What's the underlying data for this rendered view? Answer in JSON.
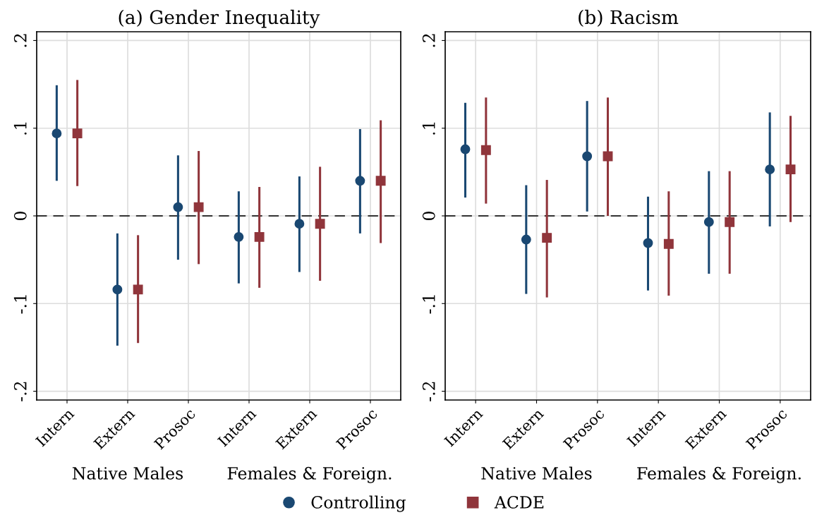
{
  "chart_data": [
    {
      "type": "scatter",
      "title": "(a) Gender Inequality",
      "ylim": [
        -0.21,
        0.21
      ],
      "categories": [
        "Intern",
        "Extern",
        "Prosoc",
        "Intern",
        "Extern",
        "Prosoc"
      ],
      "yticks": [
        {
          "value": -0.2,
          "label": "-.2"
        },
        {
          "value": -0.1,
          "label": "-.1"
        },
        0,
        {
          "value": 0.1,
          "label": ".1"
        },
        {
          "value": 0.2,
          "label": ".2"
        }
      ],
      "grid": true,
      "legend": "bottom",
      "annotations": [
        "Native Males",
        "Females & Foreign."
      ],
      "ref_lines": [
        {
          "axis": "y",
          "value": 0,
          "color": "#333333",
          "line_style": "dashed"
        }
      ],
      "series": [
        {
          "name": "Controlling",
          "color": "#1a4872",
          "marker": "circle",
          "values": [
            0.094,
            -0.084,
            0.01,
            -0.024,
            -0.009,
            0.04
          ],
          "errors": [
            [
              0.04,
              0.149
            ],
            [
              -0.148,
              -0.02
            ],
            [
              -0.05,
              0.069
            ],
            [
              -0.077,
              0.028
            ],
            [
              -0.064,
              0.045
            ],
            [
              -0.02,
              0.099
            ]
          ]
        },
        {
          "name": "ACDE",
          "color": "#90353b",
          "marker": "square",
          "values": [
            0.094,
            -0.084,
            0.01,
            -0.024,
            -0.009,
            0.04
          ],
          "errors": [
            [
              0.034,
              0.155
            ],
            [
              -0.145,
              -0.022
            ],
            [
              -0.055,
              0.074
            ],
            [
              -0.082,
              0.033
            ],
            [
              -0.074,
              0.056
            ],
            [
              -0.031,
              0.109
            ]
          ]
        }
      ]
    },
    {
      "type": "scatter",
      "title": "(b) Racism",
      "ylim": [
        -0.21,
        0.21
      ],
      "categories": [
        "Intern",
        "Extern",
        "Prosoc",
        "Intern",
        "Extern",
        "Prosoc"
      ],
      "yticks": [
        {
          "value": -0.2,
          "label": "-.2"
        },
        {
          "value": -0.1,
          "label": "-.1"
        },
        0,
        {
          "value": 0.1,
          "label": ".1"
        },
        {
          "value": 0.2,
          "label": ".2"
        }
      ],
      "grid": true,
      "legend": "bottom",
      "annotations": [
        "Native Males",
        "Females & Foreign."
      ],
      "ref_lines": [
        {
          "axis": "y",
          "value": 0,
          "color": "#333333",
          "line_style": "dashed"
        }
      ],
      "series": [
        {
          "color": "#1a4872",
          "marker": "circle",
          "values": [
            0.076,
            -0.027,
            0.068,
            -0.031,
            -0.007,
            0.053
          ],
          "errors": [
            [
              0.021,
              0.129
            ],
            [
              -0.089,
              0.035
            ],
            [
              0.005,
              0.131
            ],
            [
              -0.085,
              0.022
            ],
            [
              -0.066,
              0.051
            ],
            [
              -0.012,
              0.118
            ]
          ]
        },
        {
          "color": "#90353b",
          "marker": "square",
          "values": [
            0.075,
            -0.025,
            0.068,
            -0.032,
            -0.007,
            0.053
          ],
          "errors": [
            [
              0.014,
              0.135
            ],
            [
              -0.093,
              0.041
            ],
            [
              0.0,
              0.135
            ],
            [
              -0.091,
              0.028
            ],
            [
              -0.066,
              0.051
            ],
            [
              -0.007,
              0.114
            ]
          ]
        }
      ]
    }
  ]
}
